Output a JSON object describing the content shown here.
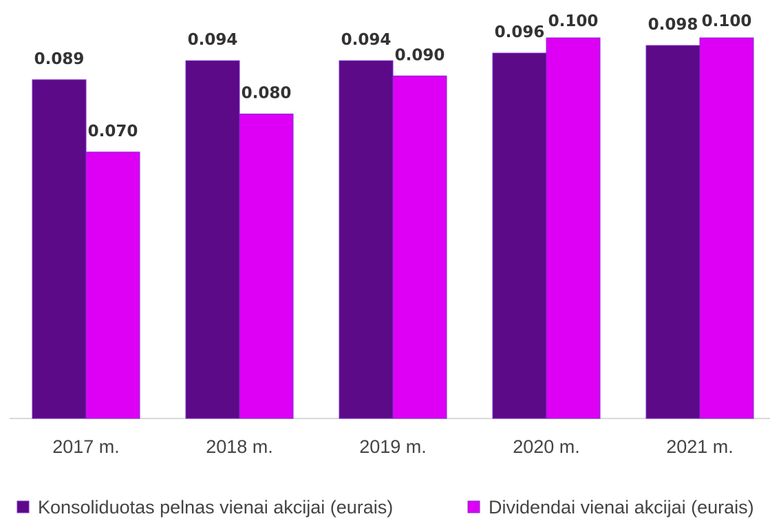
{
  "chart_data": {
    "type": "bar",
    "categories": [
      "2017 m.",
      "2018 m.",
      "2019 m.",
      "2020 m.",
      "2021 m."
    ],
    "series": [
      {
        "name": "Konsoliduotas pelnas vienai akcijai (eurais)",
        "color": "#5c0a87",
        "values": [
          0.089,
          0.094,
          0.094,
          0.096,
          0.098
        ],
        "labels": [
          "0.089",
          "0.094",
          "0.094",
          "0.096",
          "0.098"
        ]
      },
      {
        "name": "Dividendai vienai akcijai (eurais)",
        "color": "#dd00f4",
        "values": [
          0.07,
          0.08,
          0.09,
          0.1,
          0.1
        ],
        "labels": [
          "0.070",
          "0.080",
          "0.090",
          "0.100",
          "0.100"
        ]
      }
    ],
    "ylim": [
      0,
      0.1
    ],
    "grid": false,
    "legend_position": "bottom"
  }
}
